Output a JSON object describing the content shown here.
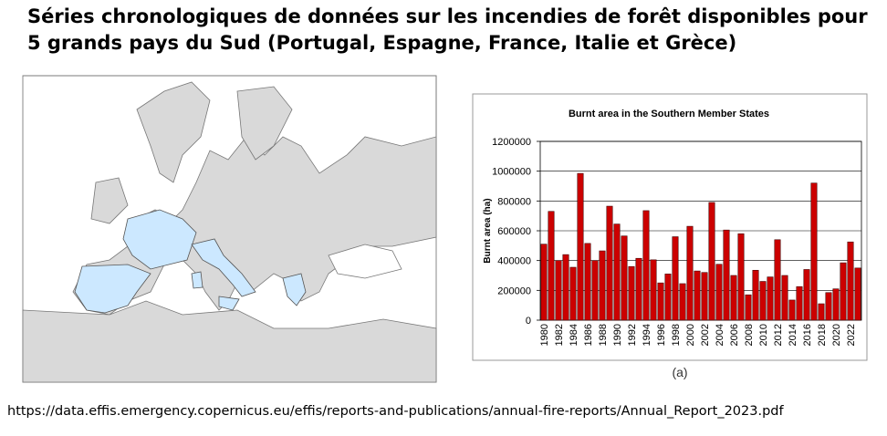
{
  "slide": {
    "title": [
      "Séries chronologiques de données sur les incendies de forêt disponibles pour",
      "5 grands pays du Sud (Portugal, Espagne, France, Italie et Grèce)"
    ],
    "caption": "(a)",
    "source": "https://data.effis.emergency.copernicus.eu/effis/reports-and-publications/annual-fire-reports/Annual_Report_2023.pdf"
  },
  "chart_data": {
    "type": "bar",
    "title": "Burnt area in the Southern Member States",
    "y_label": "Burnt area (ha)",
    "categories": [
      "1980",
      null,
      "1982",
      null,
      "1984",
      null,
      "1986",
      null,
      "1988",
      null,
      "1990",
      null,
      "1992",
      null,
      "1994",
      null,
      "1996",
      null,
      "1998",
      null,
      "2000",
      null,
      "2002",
      null,
      "2004",
      null,
      "2006",
      null,
      "2008",
      null,
      "2010",
      null,
      "2012",
      null,
      "2014",
      null,
      "2016",
      null,
      "2018",
      null,
      "2020",
      null,
      "2022",
      null
    ],
    "values": [
      510000,
      730000,
      400000,
      440000,
      355000,
      985000,
      515000,
      400000,
      465000,
      765000,
      645000,
      565000,
      360000,
      415000,
      735000,
      405000,
      250000,
      310000,
      560000,
      245000,
      630000,
      330000,
      320000,
      790000,
      375000,
      605000,
      300000,
      580000,
      170000,
      335000,
      260000,
      290000,
      540000,
      300000,
      135000,
      225000,
      340000,
      920000,
      110000,
      185000,
      210000,
      385000,
      525000,
      350000
    ],
    "color": "#cc0000",
    "ylim": [
      0,
      1200000
    ],
    "yticks": [
      0,
      200000,
      400000,
      600000,
      800000,
      1000000,
      1200000
    ],
    "grid": true
  }
}
